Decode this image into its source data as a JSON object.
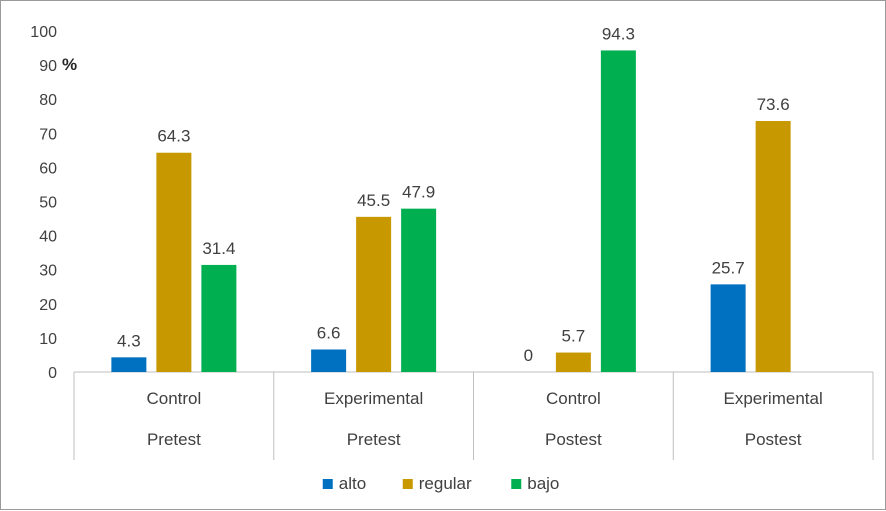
{
  "chart_data": {
    "type": "bar",
    "unit_label": "%",
    "categories": [
      [
        "Control",
        "Pretest"
      ],
      [
        "Experimental",
        "Pretest"
      ],
      [
        "Control",
        "Postest"
      ],
      [
        "Experimental",
        "Postest"
      ]
    ],
    "series": [
      {
        "name": "alto",
        "color": "#0070c0",
        "values": [
          4.3,
          6.6,
          0,
          25.7
        ]
      },
      {
        "name": "regular",
        "color": "#c89800",
        "values": [
          64.3,
          45.5,
          5.7,
          73.6
        ]
      },
      {
        "name": "bajo",
        "color": "#00b050",
        "values": [
          31.4,
          47.9,
          94.3,
          null
        ]
      }
    ],
    "ylim": [
      0,
      100
    ],
    "yticks": [
      0,
      10,
      20,
      30,
      40,
      50,
      60,
      70,
      80,
      90,
      100
    ],
    "grid": false,
    "legend_position": "bottom",
    "data_labels": true
  }
}
